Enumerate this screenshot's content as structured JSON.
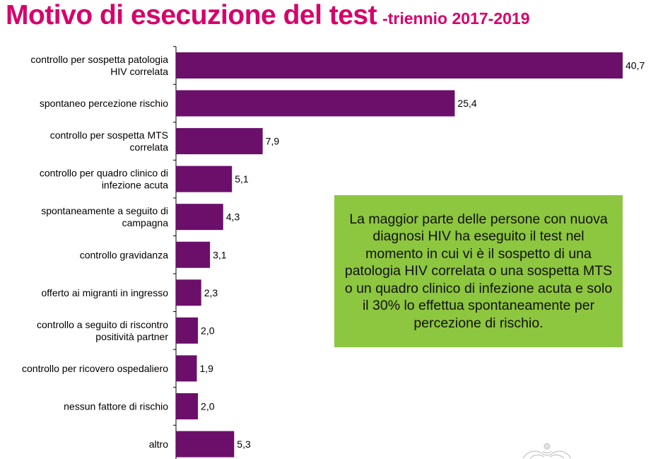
{
  "title": {
    "main": "Motivo di esecuzione del test",
    "sub": "-triennio 2017-2019"
  },
  "callout": {
    "text": "La maggior parte delle persone con nuova diagnosi HIV ha eseguito il test nel momento in cui vi è il sospetto di una patologia HIV correlata o una sospetta MTS o un quadro clinico di infezione acuta e solo il 30% lo effettua spontaneamente per percezione di rischio."
  },
  "chart_data": {
    "type": "bar",
    "orientation": "horizontal",
    "categories": [
      "controllo per sospetta patologia\nHIV correlata",
      "spontaneo percezione rischio",
      "controllo per sospetta MTS\ncorrelata",
      "controllo per quadro clinico di\ninfezione acuta",
      "spontaneamente a seguito di\ncampagna",
      "controllo gravidanza",
      "offerto ai migranti in ingresso",
      "controllo a seguito di riscontro\npositività partner",
      "controllo per ricovero ospedaliero",
      "nessun fattore di rischio",
      "altro"
    ],
    "values": [
      40.7,
      25.4,
      7.9,
      5.1,
      4.3,
      3.1,
      2.3,
      2.0,
      1.9,
      2.0,
      5.3
    ],
    "value_labels": [
      "40,7",
      "25,4",
      "7,9",
      "5,1",
      "4,3",
      "3,1",
      "2,3",
      "2,0",
      "1,9",
      "2,0",
      "5,3"
    ],
    "xlim": [
      0,
      40.7
    ],
    "bar_color": "#6b0f6b",
    "grid": false,
    "legend": "none"
  }
}
